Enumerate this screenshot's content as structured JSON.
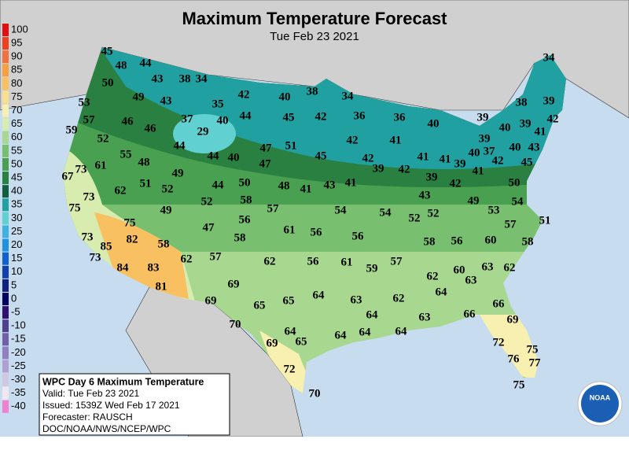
{
  "header": {
    "title": "Maximum Temperature Forecast",
    "subtitle": "Tue Feb 23 2021"
  },
  "color_scale": {
    "labels": [
      100,
      95,
      90,
      85,
      80,
      75,
      70,
      65,
      60,
      55,
      50,
      45,
      40,
      35,
      30,
      25,
      20,
      15,
      10,
      5,
      0,
      -5,
      -10,
      -15,
      -20,
      -25,
      -30,
      -35,
      -40
    ],
    "colors": [
      "#e01010",
      "#f04020",
      "#f07040",
      "#f8a040",
      "#f8c060",
      "#f8e090",
      "#f8f0b0",
      "#d8ecb0",
      "#a8d890",
      "#78c070",
      "#48a050",
      "#2a8040",
      "#106040",
      "#20a0a0",
      "#60d0d0",
      "#40b0e0",
      "#2090e0",
      "#1060d0",
      "#1040b0",
      "#102080",
      "#000060",
      "#301070",
      "#504090",
      "#7060a8",
      "#9080c0",
      "#b0a0d0",
      "#d0c8e0",
      "#f0e8f0",
      "#f080d0"
    ]
  },
  "temperatures": [
    45,
    48,
    44,
    50,
    43,
    38,
    34,
    34,
    53,
    49,
    43,
    35,
    42,
    40,
    38,
    34,
    38,
    39,
    57,
    46,
    46,
    37,
    40,
    44,
    45,
    42,
    36,
    36,
    40,
    40,
    39,
    41,
    42,
    59,
    52,
    29,
    44,
    47,
    51,
    42,
    41,
    39,
    39,
    40,
    37,
    40,
    43,
    61,
    55,
    48,
    44,
    40,
    47,
    45,
    42,
    39,
    42,
    41,
    41,
    39,
    41,
    42,
    45,
    73,
    67,
    49,
    51,
    52,
    44,
    50,
    48,
    41,
    43,
    41,
    39,
    42,
    50,
    73,
    62,
    52,
    58,
    43,
    49,
    54,
    75,
    49,
    57,
    54,
    54,
    52,
    52,
    53,
    51,
    75,
    56,
    61,
    56,
    57,
    73,
    85,
    82,
    58,
    47,
    58,
    56,
    58,
    56,
    60,
    58,
    73,
    62,
    57,
    62,
    56,
    61,
    59,
    57,
    63,
    62,
    84,
    83,
    60,
    63,
    62,
    81,
    69,
    64,
    69,
    65,
    65,
    64,
    63,
    62,
    66,
    70,
    64,
    64,
    64,
    64,
    64,
    63,
    66,
    69,
    69,
    65,
    72,
    75,
    76,
    77,
    72,
    70,
    75
  ],
  "info_box": {
    "lines": [
      "WPC Day 6 Maximum Temperature",
      "Valid: Tue Feb 23 2021",
      "Issued: 1539Z Wed Feb 17 2021",
      "Forecaster: RAUSCH",
      "DOC/NOAA/NWS/NCEP/WPC"
    ]
  },
  "logo": {
    "text": "NOAA"
  }
}
